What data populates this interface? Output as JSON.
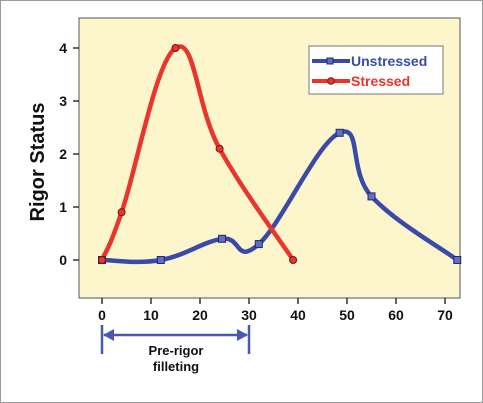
{
  "chart_data": {
    "type": "line",
    "title": "",
    "xlabel": "",
    "ylabel": "Rigor Status",
    "xlim": [
      -5,
      75
    ],
    "ylim": [
      -0.5,
      4.3
    ],
    "xticks": [
      0,
      10,
      20,
      30,
      40,
      50,
      60,
      70
    ],
    "yticks": [
      0,
      1,
      2,
      3,
      4
    ],
    "grid": false,
    "legend_position": "top-right",
    "series": [
      {
        "name": "Unstressed",
        "color": "#3a4aa8",
        "marker": "square",
        "x": [
          0,
          12,
          24.5,
          32,
          48.5,
          55,
          72.5
        ],
        "y": [
          0,
          0,
          0.4,
          0.3,
          2.4,
          1.2,
          0
        ]
      },
      {
        "name": "Stressed",
        "color": "#e8362a",
        "marker": "circle",
        "x": [
          0,
          4,
          15,
          24,
          39
        ],
        "y": [
          0,
          0.9,
          4,
          2.1,
          0
        ]
      }
    ],
    "annotation": {
      "label_line1": "Pre-rigor",
      "label_line2": "filleting",
      "from_x": 0,
      "to_x": 30
    }
  }
}
